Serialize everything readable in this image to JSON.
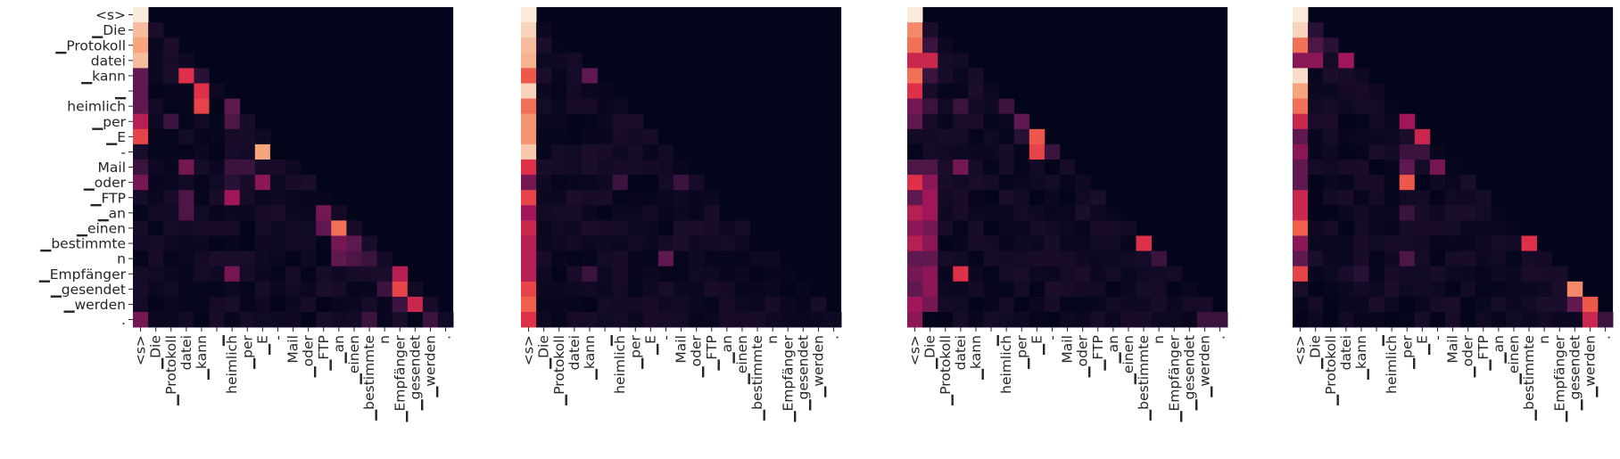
{
  "tokens": [
    "<s>",
    "▁Die",
    "▁Protokoll",
    "datei",
    "▁kann",
    "▁",
    "heimlich",
    "▁per",
    "▁E",
    "-",
    "Mail",
    "▁oder",
    "▁FTP",
    "▁an",
    "▁einen",
    "▁bestimmte",
    "n",
    "▁Empfänger",
    "▁gesendet",
    "▁werden",
    "."
  ],
  "colors": {
    "low": "#03051a",
    "high": "#faebdd",
    "background": "#ffffff"
  },
  "chart_data": [
    {
      "type": "heatmap",
      "title": "",
      "x_ticks": [
        "<s>",
        "▁Die",
        "▁Protokoll",
        "datei",
        "▁kann",
        "▁",
        "heimlich",
        "▁per",
        "▁E",
        "-",
        "Mail",
        "▁oder",
        "▁FTP",
        "▁an",
        "▁einen",
        "▁bestimmte",
        "n",
        "▁Empfänger",
        "▁gesendet",
        "▁werden",
        "."
      ],
      "y_ticks": [
        "<s>",
        "▁Die",
        "▁Protokoll",
        "datei",
        "▁kann",
        "▁",
        "heimlich",
        "▁per",
        "▁E",
        "-",
        "Mail",
        "▁oder",
        "▁FTP",
        "▁an",
        "▁einen",
        "▁bestimmte",
        "n",
        "▁Empfänger",
        "▁gesendet",
        "▁werden",
        "."
      ],
      "show_y_ticks": true,
      "colormap": "rocket",
      "value_range": [
        0,
        1
      ],
      "mask": "upper-triangle",
      "highlights": [
        {
          "row": 0,
          "col": 0,
          "value": 1.0
        },
        {
          "row": 1,
          "col": 0,
          "value": 0.9
        },
        {
          "row": 1,
          "col": 1,
          "value": 0.1
        },
        {
          "row": 2,
          "col": 0,
          "value": 0.85
        },
        {
          "row": 2,
          "col": 2,
          "value": 0.1
        },
        {
          "row": 3,
          "col": 0,
          "value": 0.9
        },
        {
          "row": 4,
          "col": 0,
          "value": 0.3
        },
        {
          "row": 4,
          "col": 3,
          "value": 0.6
        },
        {
          "row": 4,
          "col": 4,
          "value": 0.15
        },
        {
          "row": 5,
          "col": 0,
          "value": 0.3
        },
        {
          "row": 5,
          "col": 4,
          "value": 0.6
        },
        {
          "row": 6,
          "col": 0,
          "value": 0.3
        },
        {
          "row": 6,
          "col": 4,
          "value": 0.65
        },
        {
          "row": 6,
          "col": 6,
          "value": 0.3
        },
        {
          "row": 7,
          "col": 0,
          "value": 0.5
        },
        {
          "row": 7,
          "col": 2,
          "value": 0.2
        },
        {
          "row": 7,
          "col": 6,
          "value": 0.25
        },
        {
          "row": 8,
          "col": 0,
          "value": 0.65
        },
        {
          "row": 9,
          "col": 8,
          "value": 0.85
        },
        {
          "row": 10,
          "col": 0,
          "value": 0.2
        },
        {
          "row": 10,
          "col": 3,
          "value": 0.35
        },
        {
          "row": 10,
          "col": 6,
          "value": 0.2
        },
        {
          "row": 10,
          "col": 7,
          "value": 0.2
        },
        {
          "row": 11,
          "col": 0,
          "value": 0.35
        },
        {
          "row": 11,
          "col": 6,
          "value": 0.15
        },
        {
          "row": 11,
          "col": 8,
          "value": 0.4
        },
        {
          "row": 12,
          "col": 3,
          "value": 0.25
        },
        {
          "row": 12,
          "col": 6,
          "value": 0.45
        },
        {
          "row": 13,
          "col": 3,
          "value": 0.25
        },
        {
          "row": 13,
          "col": 12,
          "value": 0.35
        },
        {
          "row": 14,
          "col": 13,
          "value": 0.75
        },
        {
          "row": 14,
          "col": 12,
          "value": 0.3
        },
        {
          "row": 15,
          "col": 13,
          "value": 0.35
        },
        {
          "row": 15,
          "col": 14,
          "value": 0.3
        },
        {
          "row": 16,
          "col": 13,
          "value": 0.3
        },
        {
          "row": 16,
          "col": 14,
          "value": 0.25
        },
        {
          "row": 16,
          "col": 15,
          "value": 0.2
        },
        {
          "row": 17,
          "col": 6,
          "value": 0.35
        },
        {
          "row": 17,
          "col": 17,
          "value": 0.5
        },
        {
          "row": 18,
          "col": 17,
          "value": 0.65
        },
        {
          "row": 18,
          "col": 16,
          "value": 0.2
        },
        {
          "row": 19,
          "col": 18,
          "value": 0.55
        },
        {
          "row": 19,
          "col": 17,
          "value": 0.2
        },
        {
          "row": 20,
          "col": 0,
          "value": 0.35
        },
        {
          "row": 20,
          "col": 15,
          "value": 0.2
        },
        {
          "row": 20,
          "col": 19,
          "value": 0.2
        }
      ]
    },
    {
      "type": "heatmap",
      "title": "",
      "x_ticks": [
        "<s>",
        "▁Die",
        "▁Protokoll",
        "datei",
        "▁kann",
        "▁",
        "heimlich",
        "▁per",
        "▁E",
        "-",
        "Mail",
        "▁oder",
        "▁FTP",
        "▁an",
        "▁einen",
        "▁bestimmte",
        "n",
        "▁Empfänger",
        "▁gesendet",
        "▁werden",
        "."
      ],
      "y_ticks": [],
      "show_y_ticks": false,
      "colormap": "rocket",
      "value_range": [
        0,
        1
      ],
      "mask": "upper-triangle",
      "highlights": [
        {
          "row": 0,
          "col": 0,
          "value": 1.0
        },
        {
          "row": 1,
          "col": 0,
          "value": 0.95
        },
        {
          "row": 2,
          "col": 0,
          "value": 0.9
        },
        {
          "row": 2,
          "col": 1,
          "value": 0.1
        },
        {
          "row": 3,
          "col": 0,
          "value": 0.88
        },
        {
          "row": 4,
          "col": 0,
          "value": 0.7
        },
        {
          "row": 4,
          "col": 4,
          "value": 0.3
        },
        {
          "row": 5,
          "col": 0,
          "value": 0.95
        },
        {
          "row": 6,
          "col": 0,
          "value": 0.75
        },
        {
          "row": 7,
          "col": 0,
          "value": 0.82
        },
        {
          "row": 8,
          "col": 0,
          "value": 0.82
        },
        {
          "row": 9,
          "col": 0,
          "value": 0.92
        },
        {
          "row": 10,
          "col": 0,
          "value": 0.6
        },
        {
          "row": 11,
          "col": 0,
          "value": 0.35
        },
        {
          "row": 11,
          "col": 6,
          "value": 0.2
        },
        {
          "row": 11,
          "col": 10,
          "value": 0.2
        },
        {
          "row": 12,
          "col": 0,
          "value": 0.65
        },
        {
          "row": 13,
          "col": 0,
          "value": 0.45
        },
        {
          "row": 14,
          "col": 0,
          "value": 0.55
        },
        {
          "row": 15,
          "col": 0,
          "value": 0.5
        },
        {
          "row": 16,
          "col": 0,
          "value": 0.5
        },
        {
          "row": 16,
          "col": 9,
          "value": 0.3
        },
        {
          "row": 17,
          "col": 0,
          "value": 0.5
        },
        {
          "row": 17,
          "col": 4,
          "value": 0.2
        },
        {
          "row": 18,
          "col": 0,
          "value": 0.65
        },
        {
          "row": 19,
          "col": 0,
          "value": 0.72
        },
        {
          "row": 20,
          "col": 0,
          "value": 0.6
        }
      ]
    },
    {
      "type": "heatmap",
      "title": "",
      "x_ticks": [
        "<s>",
        "▁Die",
        "▁Protokoll",
        "datei",
        "▁kann",
        "▁",
        "heimlich",
        "▁per",
        "▁E",
        "-",
        "Mail",
        "▁oder",
        "▁FTP",
        "▁an",
        "▁einen",
        "▁bestimmte",
        "n",
        "▁Empfänger",
        "▁gesendet",
        "▁werden",
        "."
      ],
      "y_ticks": [],
      "show_y_ticks": false,
      "colormap": "rocket",
      "value_range": [
        0,
        1
      ],
      "mask": "upper-triangle",
      "highlights": [
        {
          "row": 0,
          "col": 0,
          "value": 1.0
        },
        {
          "row": 1,
          "col": 0,
          "value": 0.8
        },
        {
          "row": 1,
          "col": 1,
          "value": 0.1
        },
        {
          "row": 2,
          "col": 0,
          "value": 0.75
        },
        {
          "row": 2,
          "col": 1,
          "value": 0.2
        },
        {
          "row": 3,
          "col": 0,
          "value": 0.55
        },
        {
          "row": 3,
          "col": 1,
          "value": 0.55
        },
        {
          "row": 4,
          "col": 0,
          "value": 0.75
        },
        {
          "row": 4,
          "col": 1,
          "value": 0.2
        },
        {
          "row": 5,
          "col": 0,
          "value": 0.6
        },
        {
          "row": 6,
          "col": 0,
          "value": 0.35
        },
        {
          "row": 6,
          "col": 1,
          "value": 0.2
        },
        {
          "row": 6,
          "col": 3,
          "value": 0.2
        },
        {
          "row": 6,
          "col": 6,
          "value": 0.2
        },
        {
          "row": 7,
          "col": 0,
          "value": 0.3
        },
        {
          "row": 7,
          "col": 7,
          "value": 0.3
        },
        {
          "row": 8,
          "col": 8,
          "value": 0.7
        },
        {
          "row": 8,
          "col": 7,
          "value": 0.15
        },
        {
          "row": 9,
          "col": 8,
          "value": 0.65
        },
        {
          "row": 9,
          "col": 9,
          "value": 0.2
        },
        {
          "row": 10,
          "col": 0,
          "value": 0.25
        },
        {
          "row": 10,
          "col": 1,
          "value": 0.25
        },
        {
          "row": 10,
          "col": 3,
          "value": 0.35
        },
        {
          "row": 11,
          "col": 0,
          "value": 0.6
        },
        {
          "row": 11,
          "col": 1,
          "value": 0.4
        },
        {
          "row": 12,
          "col": 0,
          "value": 0.3
        },
        {
          "row": 12,
          "col": 1,
          "value": 0.45
        },
        {
          "row": 13,
          "col": 0,
          "value": 0.5
        },
        {
          "row": 13,
          "col": 1,
          "value": 0.45
        },
        {
          "row": 14,
          "col": 0,
          "value": 0.4
        },
        {
          "row": 14,
          "col": 1,
          "value": 0.35
        },
        {
          "row": 15,
          "col": 0,
          "value": 0.5
        },
        {
          "row": 15,
          "col": 1,
          "value": 0.4
        },
        {
          "row": 15,
          "col": 15,
          "value": 0.6
        },
        {
          "row": 16,
          "col": 0,
          "value": 0.3
        },
        {
          "row": 16,
          "col": 1,
          "value": 0.3
        },
        {
          "row": 16,
          "col": 16,
          "value": 0.2
        },
        {
          "row": 17,
          "col": 0,
          "value": 0.35
        },
        {
          "row": 17,
          "col": 1,
          "value": 0.4
        },
        {
          "row": 17,
          "col": 3,
          "value": 0.6
        },
        {
          "row": 18,
          "col": 0,
          "value": 0.3
        },
        {
          "row": 18,
          "col": 1,
          "value": 0.4
        },
        {
          "row": 19,
          "col": 0,
          "value": 0.45
        },
        {
          "row": 19,
          "col": 1,
          "value": 0.35
        },
        {
          "row": 20,
          "col": 0,
          "value": 0.4
        },
        {
          "row": 20,
          "col": 19,
          "value": 0.2
        },
        {
          "row": 20,
          "col": 20,
          "value": 0.2
        }
      ]
    },
    {
      "type": "heatmap",
      "title": "",
      "x_ticks": [
        "<s>",
        "▁Die",
        "▁Protokoll",
        "datei",
        "▁kann",
        "▁",
        "heimlich",
        "▁per",
        "▁E",
        "-",
        "Mail",
        "▁oder",
        "▁FTP",
        "▁an",
        "▁einen",
        "▁bestimmte",
        "n",
        "▁Empfänger",
        "▁gesendet",
        "▁werden",
        "."
      ],
      "y_ticks": [],
      "show_y_ticks": false,
      "colormap": "rocket",
      "value_range": [
        0,
        1
      ],
      "mask": "upper-triangle",
      "highlights": [
        {
          "row": 0,
          "col": 0,
          "value": 1.0
        },
        {
          "row": 1,
          "col": 0,
          "value": 0.95
        },
        {
          "row": 1,
          "col": 1,
          "value": 0.15
        },
        {
          "row": 2,
          "col": 0,
          "value": 0.75
        },
        {
          "row": 2,
          "col": 1,
          "value": 0.25
        },
        {
          "row": 2,
          "col": 2,
          "value": 0.15
        },
        {
          "row": 3,
          "col": 0,
          "value": 0.4
        },
        {
          "row": 3,
          "col": 1,
          "value": 0.4
        },
        {
          "row": 3,
          "col": 3,
          "value": 0.45
        },
        {
          "row": 4,
          "col": 0,
          "value": 0.97
        },
        {
          "row": 5,
          "col": 0,
          "value": 0.85
        },
        {
          "row": 6,
          "col": 0,
          "value": 0.75
        },
        {
          "row": 6,
          "col": 7,
          "value": 0.2
        },
        {
          "row": 7,
          "col": 0,
          "value": 0.55
        },
        {
          "row": 7,
          "col": 7,
          "value": 0.45
        },
        {
          "row": 8,
          "col": 0,
          "value": 0.3
        },
        {
          "row": 8,
          "col": 8,
          "value": 0.55
        },
        {
          "row": 9,
          "col": 0,
          "value": 0.4
        },
        {
          "row": 9,
          "col": 7,
          "value": 0.2
        },
        {
          "row": 9,
          "col": 8,
          "value": 0.2
        },
        {
          "row": 10,
          "col": 0,
          "value": 0.3
        },
        {
          "row": 10,
          "col": 7,
          "value": 0.3
        },
        {
          "row": 10,
          "col": 9,
          "value": 0.35
        },
        {
          "row": 11,
          "col": 0,
          "value": 0.3
        },
        {
          "row": 11,
          "col": 7,
          "value": 0.7
        },
        {
          "row": 12,
          "col": 0,
          "value": 0.55
        },
        {
          "row": 13,
          "col": 0,
          "value": 0.55
        },
        {
          "row": 13,
          "col": 7,
          "value": 0.2
        },
        {
          "row": 14,
          "col": 0,
          "value": 0.72
        },
        {
          "row": 15,
          "col": 0,
          "value": 0.4
        },
        {
          "row": 15,
          "col": 15,
          "value": 0.6
        },
        {
          "row": 16,
          "col": 0,
          "value": 0.3
        },
        {
          "row": 16,
          "col": 7,
          "value": 0.25
        },
        {
          "row": 17,
          "col": 0,
          "value": 0.65
        },
        {
          "row": 17,
          "col": 4,
          "value": 0.15
        },
        {
          "row": 18,
          "col": 18,
          "value": 0.8
        },
        {
          "row": 19,
          "col": 18,
          "value": 0.3
        },
        {
          "row": 19,
          "col": 19,
          "value": 0.7
        },
        {
          "row": 20,
          "col": 19,
          "value": 0.55
        },
        {
          "row": 20,
          "col": 20,
          "value": 0.2
        }
      ]
    }
  ]
}
